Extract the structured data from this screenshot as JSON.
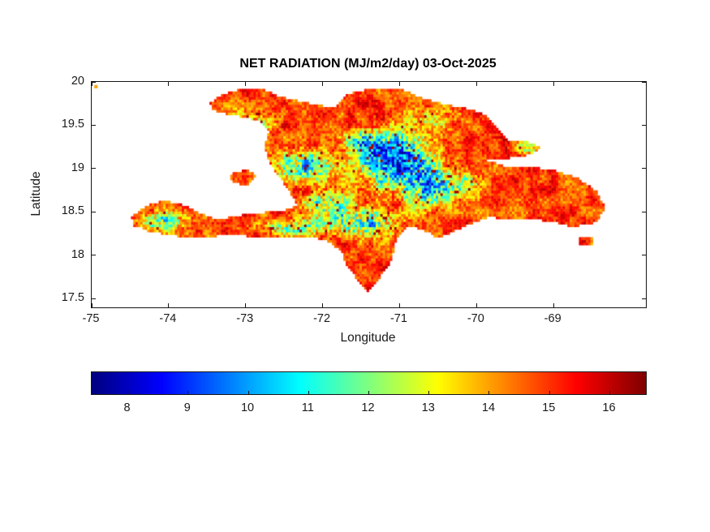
{
  "figure": {
    "title": "NET RADIATION (MJ/m2/day) 03-Oct-2025",
    "xlabel": "Longitude",
    "ylabel": "Latitude"
  },
  "chart_data": {
    "type": "heatmap",
    "title": "NET RADIATION (MJ/m2/day) 03-Oct-2025",
    "subtitle_date": "03-Oct-2025",
    "units": "MJ/m2/day",
    "xlabel": "Longitude",
    "ylabel": "Latitude",
    "xlim": [
      -75,
      -67.8
    ],
    "ylim": [
      17.4,
      20
    ],
    "xticks": [
      -75,
      -74,
      -73,
      -72,
      -71,
      -70,
      -69
    ],
    "yticks": [
      17.5,
      18,
      18.5,
      19,
      19.5,
      20
    ],
    "grid": false,
    "colormap": "jet",
    "clim": [
      7.4,
      16.6
    ],
    "colorbar_ticks": [
      8,
      9,
      10,
      11,
      12,
      13,
      14,
      15,
      16
    ],
    "colorbar_position": "south",
    "grid_step_deg": 0.03,
    "field": {
      "base_value": 14.9,
      "smooth_noise_amp": 0.9,
      "speckle_noise_amp": 0.65,
      "zone_speckle_gain": 0.5,
      "speck_threshold": 0.962,
      "speck_min_zone_depth": 1.2,
      "speck_value": 16.3,
      "low_zones": [
        {
          "lon": -71.05,
          "lat": 19.1,
          "sx": 0.42,
          "sy": 0.3,
          "depth": 6.3
        },
        {
          "lon": -70.62,
          "lat": 18.8,
          "sx": 0.3,
          "sy": 0.22,
          "depth": 4.2
        },
        {
          "lon": -71.45,
          "lat": 19.28,
          "sx": 0.25,
          "sy": 0.15,
          "depth": 3.0
        },
        {
          "lon": -72.25,
          "lat": 19.03,
          "sx": 0.4,
          "sy": 0.17,
          "depth": 3.8
        },
        {
          "lon": -71.95,
          "lat": 18.62,
          "sx": 0.3,
          "sy": 0.14,
          "depth": 3.2
        },
        {
          "lon": -71.5,
          "lat": 18.38,
          "sx": 0.45,
          "sy": 0.16,
          "depth": 4.0
        },
        {
          "lon": -72.4,
          "lat": 18.33,
          "sx": 0.4,
          "sy": 0.1,
          "depth": 2.6
        },
        {
          "lon": -74.05,
          "lat": 18.4,
          "sx": 0.3,
          "sy": 0.11,
          "depth": 3.2
        },
        {
          "lon": -72.95,
          "lat": 19.55,
          "sx": 0.35,
          "sy": 0.13,
          "depth": 2.2
        },
        {
          "lon": -70.55,
          "lat": 19.58,
          "sx": 0.35,
          "sy": 0.12,
          "depth": 1.6
        },
        {
          "lon": -70.15,
          "lat": 18.85,
          "sx": 0.22,
          "sy": 0.15,
          "depth": 2.2
        },
        {
          "lon": -69.35,
          "lat": 19.25,
          "sx": 0.16,
          "sy": 0.08,
          "depth": 2.0
        }
      ]
    },
    "regions": {
      "hispaniola": [
        [
          -73.47,
          19.75
        ],
        [
          -73.3,
          19.86
        ],
        [
          -73.05,
          19.92
        ],
        [
          -72.8,
          19.93
        ],
        [
          -72.55,
          19.83
        ],
        [
          -72.3,
          19.78
        ],
        [
          -72.05,
          19.73
        ],
        [
          -71.85,
          19.71
        ],
        [
          -71.7,
          19.84
        ],
        [
          -71.55,
          19.9
        ],
        [
          -71.25,
          19.92
        ],
        [
          -70.95,
          19.91
        ],
        [
          -70.7,
          19.81
        ],
        [
          -70.4,
          19.74
        ],
        [
          -70.1,
          19.69
        ],
        [
          -69.88,
          19.62
        ],
        [
          -69.72,
          19.44
        ],
        [
          -69.6,
          19.33
        ],
        [
          -69.4,
          19.33
        ],
        [
          -69.16,
          19.24
        ],
        [
          -69.32,
          19.16
        ],
        [
          -69.62,
          19.12
        ],
        [
          -69.88,
          19.1
        ],
        [
          -69.6,
          19.02
        ],
        [
          -69.3,
          19.02
        ],
        [
          -69.0,
          18.98
        ],
        [
          -68.7,
          18.9
        ],
        [
          -68.45,
          18.75
        ],
        [
          -68.33,
          18.55
        ],
        [
          -68.45,
          18.38
        ],
        [
          -68.75,
          18.33
        ],
        [
          -69.05,
          18.4
        ],
        [
          -69.45,
          18.42
        ],
        [
          -69.85,
          18.44
        ],
        [
          -70.2,
          18.32
        ],
        [
          -70.5,
          18.2
        ],
        [
          -70.65,
          18.28
        ],
        [
          -70.9,
          18.35
        ],
        [
          -71.05,
          18.18
        ],
        [
          -71.1,
          17.95
        ],
        [
          -71.3,
          17.7
        ],
        [
          -71.42,
          17.58
        ],
        [
          -71.55,
          17.72
        ],
        [
          -71.68,
          17.88
        ],
        [
          -71.76,
          18.05
        ],
        [
          -71.95,
          18.18
        ],
        [
          -72.25,
          18.22
        ],
        [
          -72.55,
          18.2
        ],
        [
          -72.9,
          18.22
        ],
        [
          -73.25,
          18.24
        ],
        [
          -73.6,
          18.2
        ],
        [
          -73.95,
          18.23
        ],
        [
          -74.25,
          18.28
        ],
        [
          -74.46,
          18.35
        ],
        [
          -74.48,
          18.45
        ],
        [
          -74.3,
          18.57
        ],
        [
          -74.08,
          18.63
        ],
        [
          -73.85,
          18.6
        ],
        [
          -73.62,
          18.5
        ],
        [
          -73.4,
          18.42
        ],
        [
          -73.18,
          18.44
        ],
        [
          -72.95,
          18.48
        ],
        [
          -72.7,
          18.5
        ],
        [
          -72.48,
          18.52
        ],
        [
          -72.32,
          18.58
        ],
        [
          -72.42,
          18.72
        ],
        [
          -72.55,
          18.9
        ],
        [
          -72.68,
          19.05
        ],
        [
          -72.76,
          19.25
        ],
        [
          -72.7,
          19.42
        ],
        [
          -72.82,
          19.55
        ],
        [
          -73.05,
          19.6
        ],
        [
          -73.25,
          19.63
        ],
        [
          -73.42,
          19.68
        ]
      ],
      "gonave": [
        [
          -73.22,
          18.93
        ],
        [
          -73.0,
          18.99
        ],
        [
          -72.85,
          18.93
        ],
        [
          -72.98,
          18.82
        ],
        [
          -73.15,
          18.83
        ]
      ],
      "saona": [
        [
          -68.68,
          18.2
        ],
        [
          -68.5,
          18.2
        ],
        [
          -68.5,
          18.11
        ],
        [
          -68.68,
          18.11
        ]
      ]
    },
    "artifact_points": [
      {
        "lon": -74.95,
        "lat": 19.95,
        "value": 14.0
      }
    ]
  }
}
